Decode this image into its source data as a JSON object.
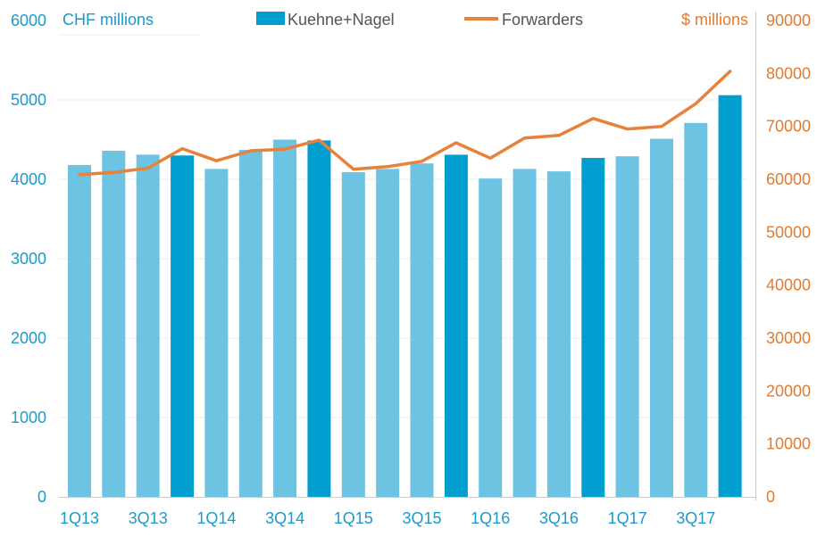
{
  "chart_data": {
    "type": "bar",
    "left_axis_unit": "CHF millions",
    "right_axis_unit": "$ millions",
    "left_ylim": [
      0,
      6000
    ],
    "left_ticks": [
      0,
      1000,
      2000,
      3000,
      4000,
      5000,
      6000
    ],
    "right_ylim": [
      0,
      90000
    ],
    "right_ticks": [
      0,
      10000,
      20000,
      30000,
      40000,
      50000,
      60000,
      70000,
      80000,
      90000
    ],
    "categories": [
      "1Q13",
      "2Q13",
      "3Q13",
      "4Q13",
      "1Q14",
      "2Q14",
      "3Q14",
      "4Q14",
      "1Q15",
      "2Q15",
      "3Q15",
      "4Q15",
      "1Q16",
      "2Q16",
      "3Q16",
      "4Q16",
      "1Q17",
      "2Q17",
      "3Q17",
      "4Q17"
    ],
    "x_tick_labels": [
      "1Q13",
      "3Q13",
      "1Q14",
      "3Q14",
      "1Q15",
      "3Q15",
      "1Q16",
      "3Q16",
      "1Q17",
      "3Q17"
    ],
    "series": [
      {
        "name": "Kuehne+Nagel",
        "kind": "bar",
        "axis": "left",
        "values": [
          4180,
          4360,
          4310,
          4300,
          4130,
          4370,
          4500,
          4490,
          4090,
          4130,
          4200,
          4310,
          4010,
          4130,
          4100,
          4270,
          4290,
          4510,
          4710,
          5060
        ]
      },
      {
        "name": "Forwarders",
        "kind": "line",
        "axis": "right",
        "values": [
          60900,
          61300,
          62100,
          65800,
          63500,
          65400,
          65700,
          67400,
          61900,
          62400,
          63400,
          66900,
          64000,
          67800,
          68300,
          71500,
          69500,
          70000,
          74300,
          80400
        ]
      }
    ],
    "highlight_categories": [
      "4Q13",
      "4Q14",
      "4Q15",
      "4Q16",
      "4Q17"
    ],
    "colors": {
      "bar_light": "#6cc3e2",
      "bar_dark": "#009fd0",
      "line": "#e8813a",
      "left_axis": "#1a9bcc",
      "right_axis": "#e07b30",
      "grid": "#ececec",
      "legend_text": "#555555"
    }
  }
}
